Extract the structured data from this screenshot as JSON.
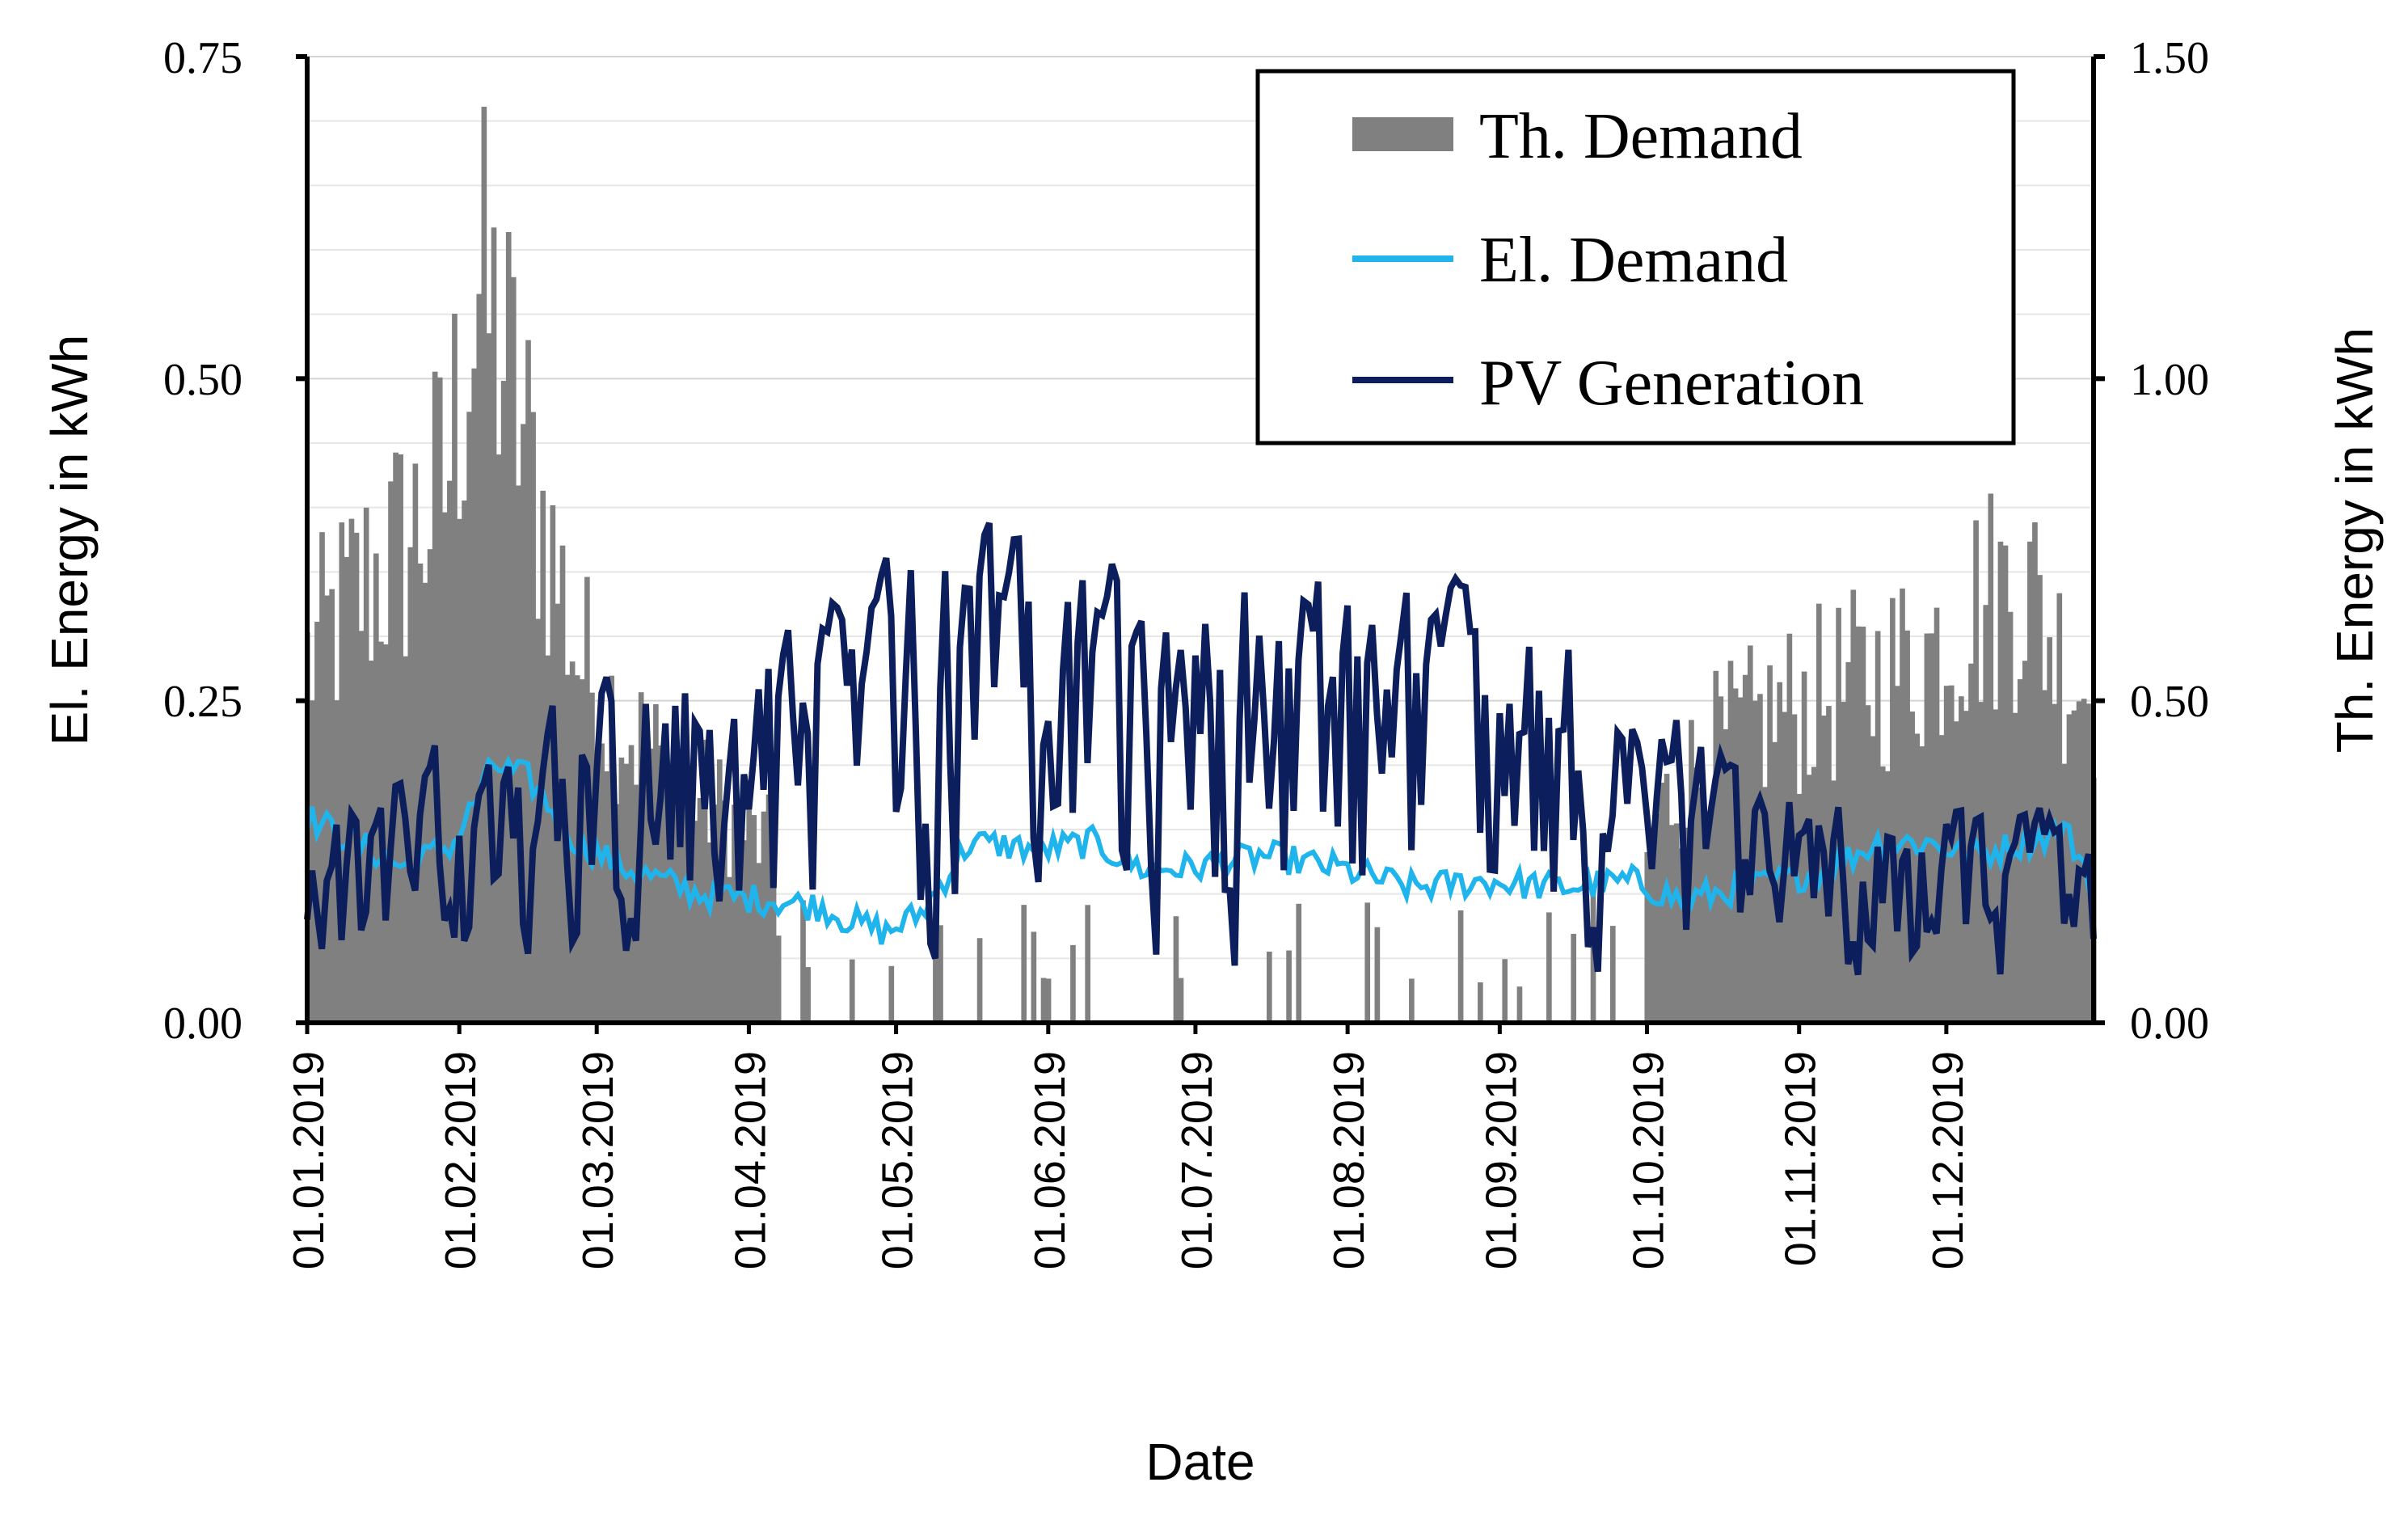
{
  "chart_data": {
    "type": "line",
    "title": "",
    "xlabel": "Date",
    "ylabel_left": "El. Energy in kWh",
    "ylabel_right": "Th. Energy in kWh",
    "ylim_left": [
      0,
      0.75
    ],
    "ylim_right": [
      0,
      1.5
    ],
    "yticks_left": [
      "0.00",
      "0.25",
      "0.50",
      "0.75"
    ],
    "yticks_right": [
      "0.00",
      "0.50",
      "1.00",
      "1.50"
    ],
    "x_ticks": [
      "01.01.2019",
      "01.02.2019",
      "01.03.2019",
      "01.04.2019",
      "01.05.2019",
      "01.06.2019",
      "01.07.2019",
      "01.08.2019",
      "01.09.2019",
      "01.10.2019",
      "01.11.2019",
      "01.12.2019"
    ],
    "x_tick_days": [
      0,
      31,
      59,
      90,
      120,
      151,
      181,
      212,
      243,
      273,
      304,
      334
    ],
    "days_in_year": 365,
    "legend_position": "top-right",
    "colors": {
      "th_demand": "#808080",
      "el_demand": "#1fb4ec",
      "pv_generation": "#0c1f5c",
      "grid": "#e6e6e6"
    },
    "legend": [
      "Th. Demand",
      "El. Demand",
      "PV Generation"
    ],
    "series": [
      {
        "name": "Th. Demand",
        "axis": "right",
        "kind": "bar",
        "knots_day": [
          0,
          10,
          20,
          28,
          33,
          35,
          40,
          45,
          50,
          55,
          60,
          70,
          80,
          90,
          100,
          105,
          110,
          115,
          120,
          130,
          140,
          150,
          160,
          170,
          180,
          190,
          200,
          210,
          220,
          230,
          240,
          250,
          260,
          270,
          275,
          285,
          300,
          310,
          320,
          330,
          340,
          350,
          357,
          364
        ],
        "knots_value": [
          0.6,
          0.72,
          0.8,
          0.9,
          1.15,
          1.22,
          1.12,
          0.95,
          0.78,
          0.62,
          0.55,
          0.45,
          0.38,
          0.32,
          0.26,
          0.2,
          0.15,
          0.1,
          0.08,
          0.08,
          0.07,
          0.06,
          0.05,
          0.04,
          0.04,
          0.05,
          0.04,
          0.05,
          0.06,
          0.05,
          0.06,
          0.07,
          0.09,
          0.12,
          0.35,
          0.45,
          0.52,
          0.55,
          0.58,
          0.62,
          0.7,
          0.74,
          0.62,
          0.55
        ],
        "summer_gap_days": [
          [
            95,
            273
          ]
        ]
      },
      {
        "name": "El. Demand",
        "axis": "left",
        "kind": "line",
        "knots_day": [
          0,
          10,
          20,
          30,
          38,
          45,
          55,
          65,
          80,
          95,
          105,
          110,
          118,
          125,
          135,
          150,
          160,
          170,
          180,
          195,
          210,
          225,
          240,
          255,
          270,
          280,
          300,
          310,
          320,
          330,
          340,
          350,
          358,
          364
        ],
        "knots_value": [
          0.16,
          0.14,
          0.12,
          0.14,
          0.2,
          0.19,
          0.14,
          0.12,
          0.1,
          0.095,
          0.09,
          0.08,
          0.07,
          0.085,
          0.14,
          0.135,
          0.14,
          0.12,
          0.12,
          0.13,
          0.12,
          0.105,
          0.11,
          0.105,
          0.11,
          0.095,
          0.11,
          0.12,
          0.14,
          0.14,
          0.13,
          0.14,
          0.15,
          0.11
        ],
        "noise_amplitude": 0.012
      },
      {
        "name": "PV Generation",
        "axis": "left",
        "kind": "line",
        "envelope_day": [
          0,
          20,
          40,
          60,
          80,
          100,
          120,
          140,
          160,
          180,
          200,
          220,
          240,
          260,
          275,
          290,
          305,
          320,
          340,
          364
        ],
        "envelope_max": [
          0.18,
          0.22,
          0.25,
          0.3,
          0.34,
          0.37,
          0.41,
          0.42,
          0.41,
          0.4,
          0.39,
          0.37,
          0.34,
          0.32,
          0.26,
          0.23,
          0.2,
          0.18,
          0.18,
          0.17
        ],
        "min_value": 0.01
      }
    ]
  }
}
